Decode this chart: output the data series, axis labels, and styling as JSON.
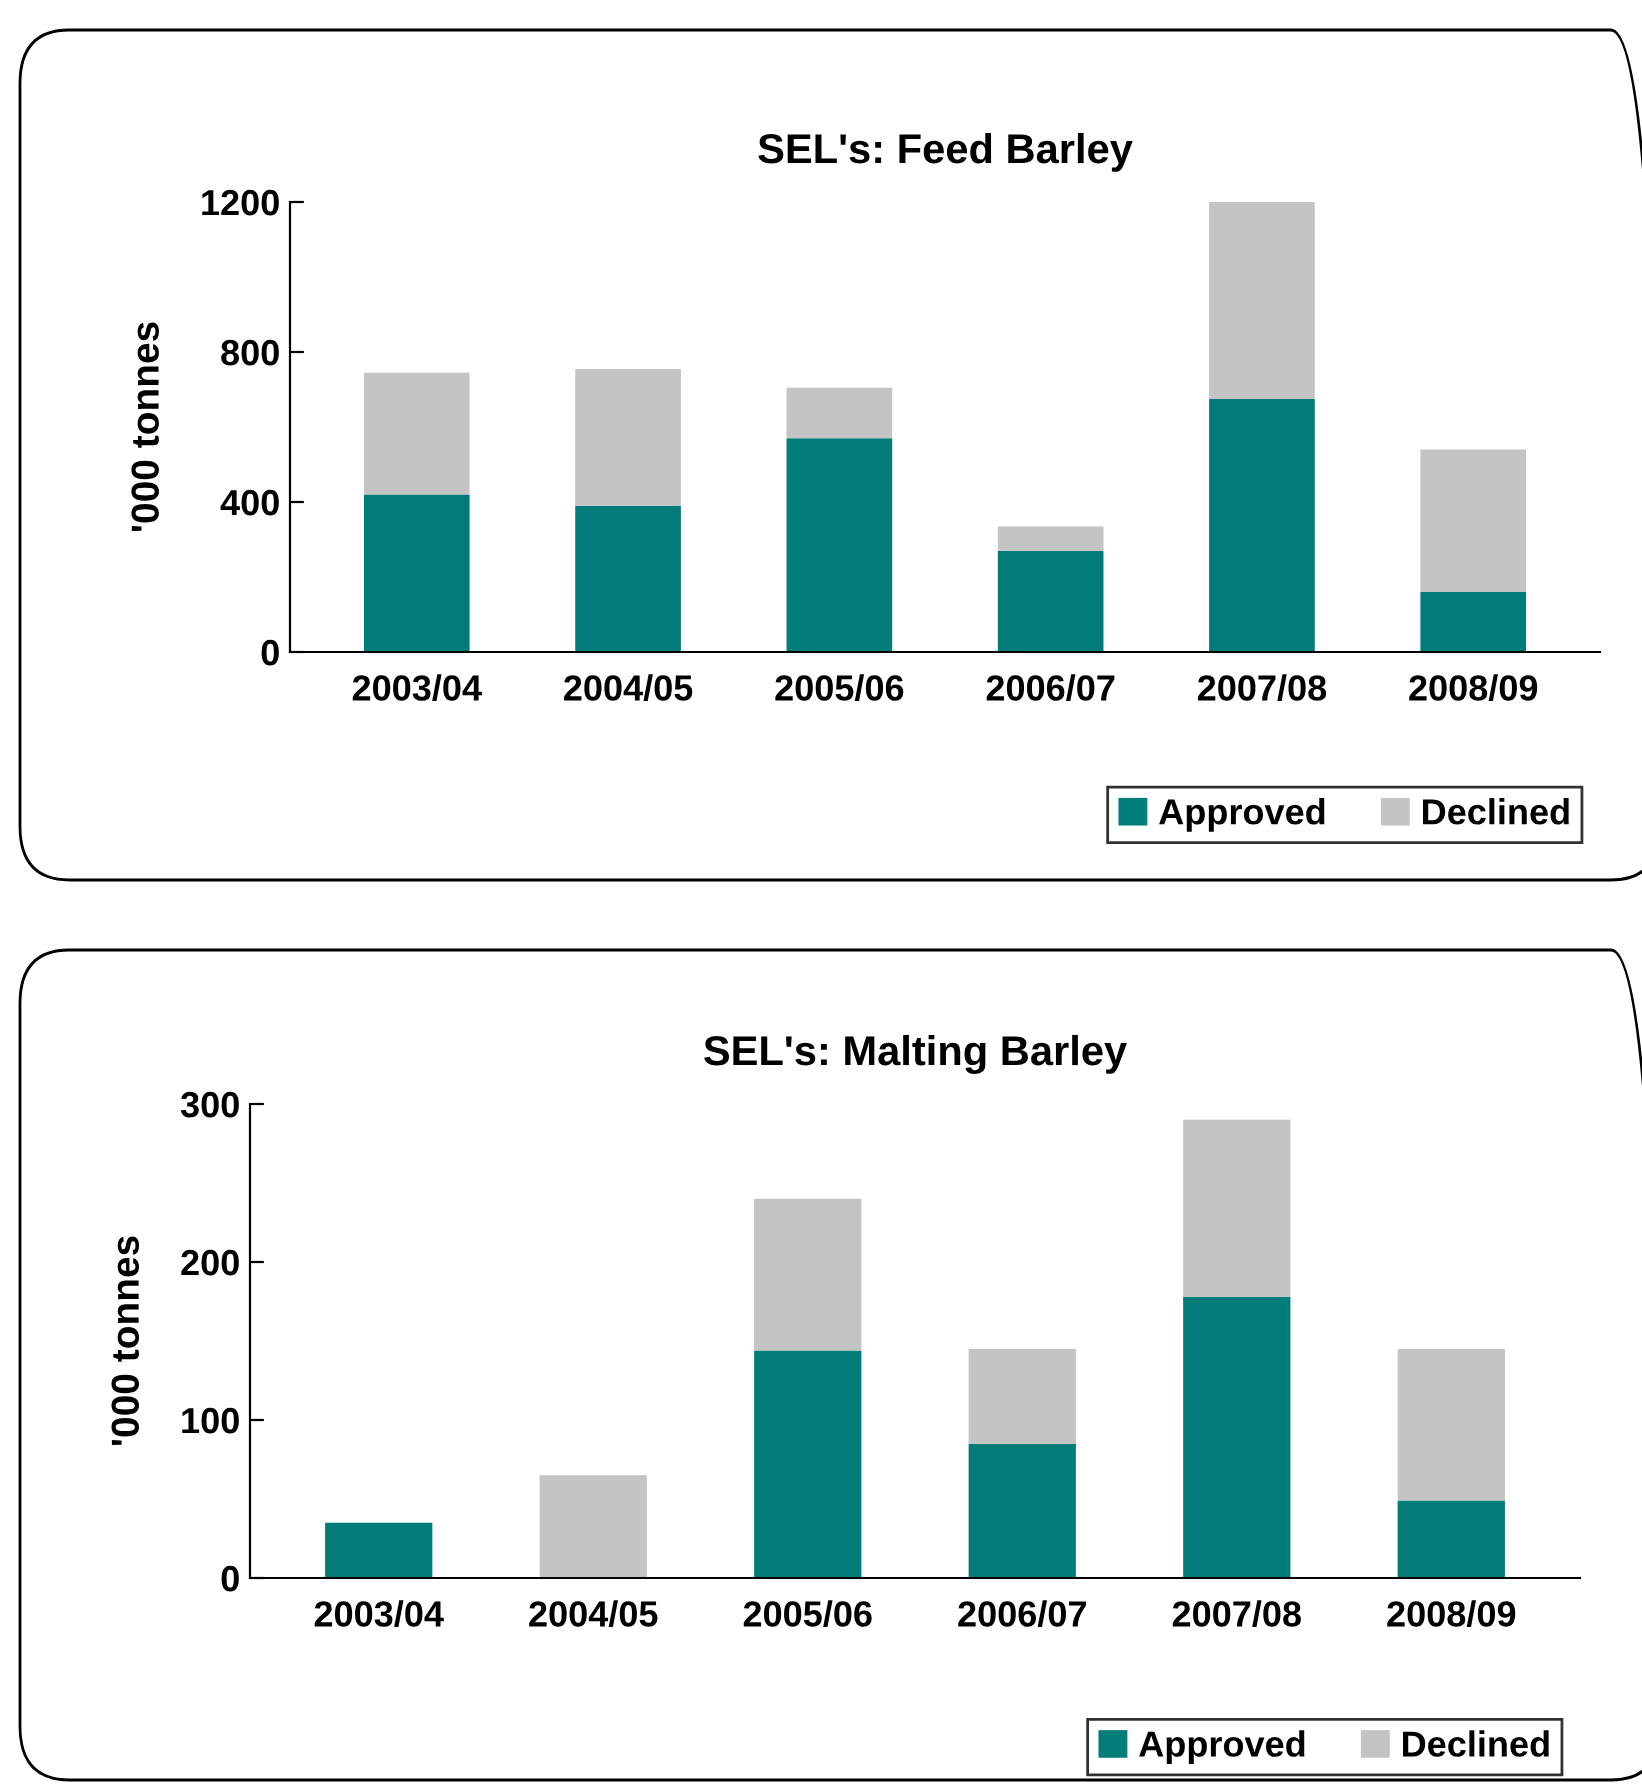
{
  "chart_data": [
    {
      "type": "bar",
      "title": "SEL's: Feed Barley",
      "ylabel": "'000 tonnes",
      "categories": [
        "2003/04",
        "2004/05",
        "2005/06",
        "2006/07",
        "2007/08",
        "2008/09"
      ],
      "stacked": true,
      "series": [
        {
          "name": "Approved",
          "color": "#007d78",
          "values": [
            420,
            390,
            570,
            270,
            675,
            160
          ]
        },
        {
          "name": "Declined",
          "color": "#c4c4c4",
          "values": [
            325,
            365,
            135,
            65,
            525,
            380
          ]
        }
      ],
      "ylim": [
        0,
        1200
      ],
      "yticks": [
        0,
        400,
        800,
        1200
      ],
      "grid": false,
      "legend": "bottom right"
    },
    {
      "type": "bar",
      "title": "SEL's: Malting Barley",
      "ylabel": "'000 tonnes",
      "categories": [
        "2003/04",
        "2004/05",
        "2005/06",
        "2006/07",
        "2007/08",
        "2008/09"
      ],
      "stacked": true,
      "series": [
        {
          "name": "Approved",
          "color": "#007d78",
          "values": [
            35,
            0,
            144,
            85,
            178,
            49
          ]
        },
        {
          "name": "Declined",
          "color": "#c4c4c4",
          "values": [
            0,
            65,
            96,
            60,
            112,
            96
          ]
        }
      ],
      "ylim": [
        0,
        300
      ],
      "yticks": [
        0,
        100,
        200,
        300
      ],
      "grid": false,
      "legend": "bottom right"
    }
  ]
}
